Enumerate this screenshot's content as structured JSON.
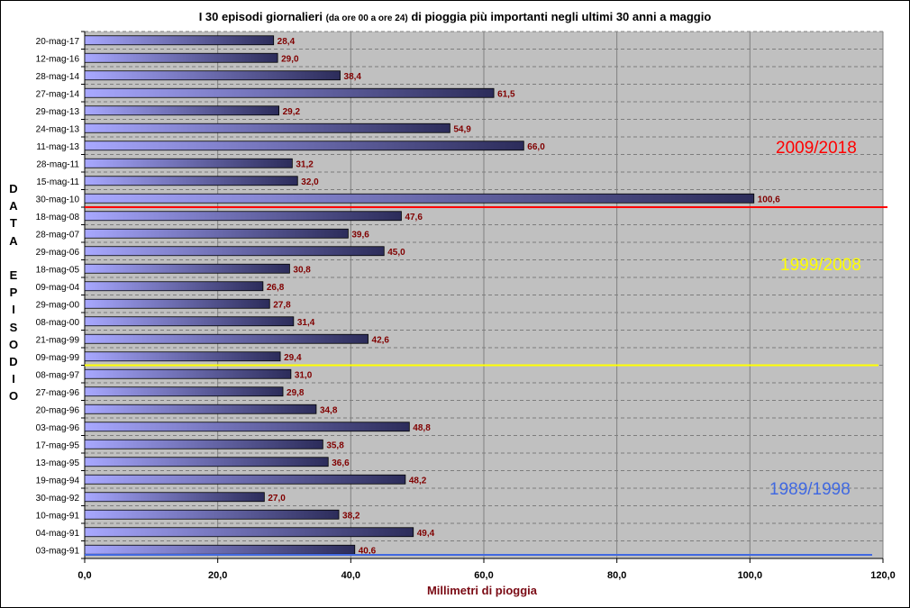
{
  "chart_data": {
    "type": "bar",
    "orientation": "horizontal",
    "title": {
      "part1": "I 30 episodi giornalieri ",
      "part2": "(da ore 00 a ore 24)",
      "part3": " di pioggia più importanti negli ultimi 30 anni a maggio"
    },
    "xlabel": "Millimetri di pioggia",
    "ylabel": [
      "D",
      "A",
      "T",
      "A",
      "",
      "E",
      "P",
      "I",
      "S",
      "O",
      "D",
      "I",
      "O"
    ],
    "xlim": [
      0,
      120
    ],
    "xticks": [
      "0,0",
      "20,0",
      "40,0",
      "60,0",
      "80,0",
      "100,0",
      "120,0"
    ],
    "xtick_values": [
      0,
      20,
      40,
      60,
      80,
      100,
      120
    ],
    "categories": [
      "20-mag-17",
      "12-mag-16",
      "28-mag-14",
      "27-mag-14",
      "29-mag-13",
      "24-mag-13",
      "11-mag-13",
      "28-mag-11",
      "15-mag-11",
      "30-mag-10",
      "18-mag-08",
      "28-mag-07",
      "29-mag-06",
      "18-mag-05",
      "09-mag-04",
      "29-mag-00",
      "08-mag-00",
      "21-mag-99",
      "09-mag-99",
      "08-mag-97",
      "27-mag-96",
      "20-mag-96",
      "03-mag-96",
      "17-mag-95",
      "13-mag-95",
      "19-mag-94",
      "30-mag-92",
      "10-mag-91",
      "04-mag-91",
      "03-mag-91"
    ],
    "values": [
      28.4,
      29.0,
      38.4,
      61.5,
      29.2,
      54.9,
      66.0,
      31.2,
      32.0,
      100.6,
      47.6,
      39.6,
      45.0,
      30.8,
      26.8,
      27.8,
      31.4,
      42.6,
      29.4,
      31.0,
      29.8,
      34.8,
      48.8,
      35.8,
      36.6,
      48.2,
      27.0,
      38.2,
      49.4,
      40.6
    ],
    "value_labels": [
      "28,4",
      "29,0",
      "38,4",
      "61,5",
      "29,2",
      "54,9",
      "66,0",
      "31,2",
      "32,0",
      "100,6",
      "47,6",
      "39,6",
      "45,0",
      "30,8",
      "26,8",
      "27,8",
      "31,4",
      "42,6",
      "29,4",
      "31,0",
      "29,8",
      "34,8",
      "48,8",
      "35,8",
      "36,6",
      "48,2",
      "27,0",
      "38,2",
      "49,4",
      "40,6"
    ],
    "periods": [
      {
        "label": "2009/2018",
        "color": "#ff0000",
        "separator_after": "30-mag-10"
      },
      {
        "label": "1999/2008",
        "color": "#ffff00",
        "separator_after": "09-mag-99"
      },
      {
        "label": "1989/1998",
        "color": "#4169e1",
        "separator_after": "03-mag-91"
      }
    ],
    "grid": true,
    "colors": {
      "plot_bg": "#c0c0c0",
      "bar_light": "#a8a8ff",
      "bar_dark": "#2c2c5a",
      "value_label": "#800000"
    }
  }
}
